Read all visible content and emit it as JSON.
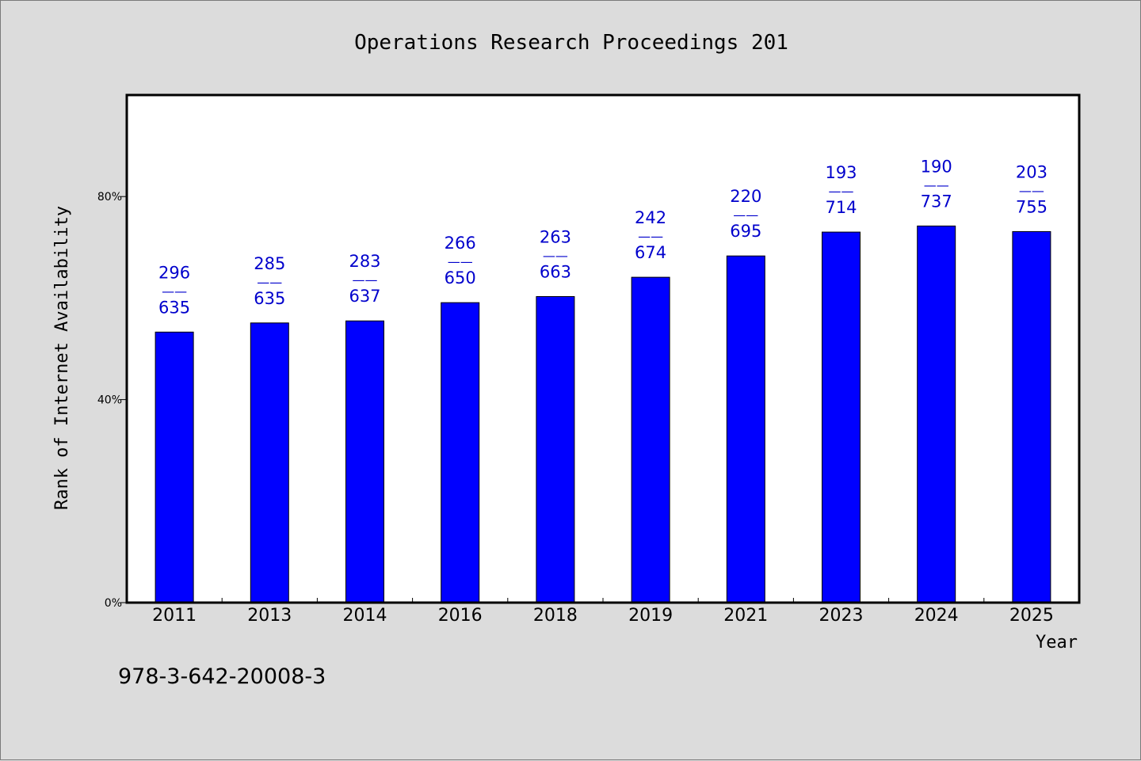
{
  "chart_data": {
    "type": "bar",
    "title": "Operations Research Proceedings 201",
    "xlabel": "Year",
    "ylabel": "Rank of Internet Availability",
    "footer": "978-3-642-20008-3",
    "categories": [
      "2011",
      "2013",
      "2014",
      "2016",
      "2018",
      "2019",
      "2021",
      "2023",
      "2024",
      "2025"
    ],
    "values": [
      53.3,
      55.1,
      55.5,
      59.1,
      60.3,
      64.1,
      68.3,
      73.0,
      74.2,
      73.1
    ],
    "labels": [
      [
        "296",
        "635"
      ],
      [
        "285",
        "635"
      ],
      [
        "283",
        "637"
      ],
      [
        "266",
        "650"
      ],
      [
        "263",
        "663"
      ],
      [
        "242",
        "674"
      ],
      [
        "220",
        "695"
      ],
      [
        "193",
        "714"
      ],
      [
        "190",
        "737"
      ],
      [
        "203",
        "755"
      ]
    ],
    "label_separator": "——",
    "yticks": [
      "0%",
      "40%",
      "80%"
    ],
    "ytick_values": [
      0,
      40,
      80
    ],
    "ylim": [
      0,
      100
    ],
    "grid": false,
    "colors": {
      "bar": "#0000ff",
      "label": "#0000cc",
      "background": "#dcdcdc",
      "plot": "#ffffff"
    }
  }
}
